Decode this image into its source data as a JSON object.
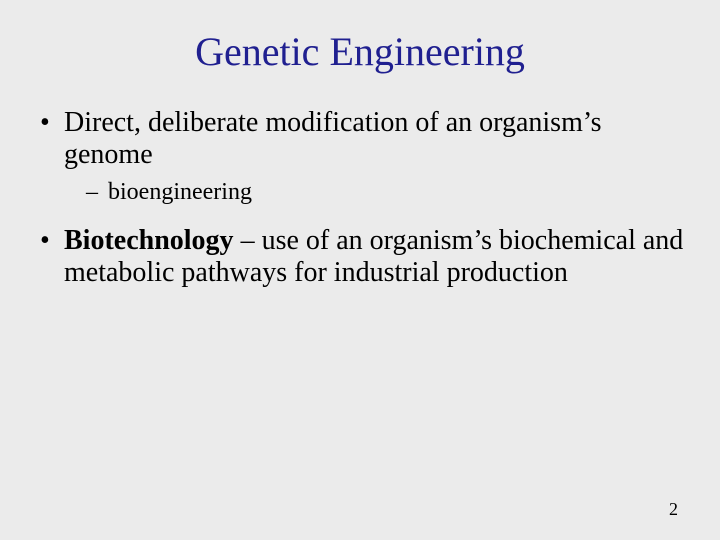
{
  "background_color": "#ebebeb",
  "title": {
    "text": "Genetic Engineering",
    "color": "#202090",
    "fontsize": 40
  },
  "bullets": [
    {
      "level": 1,
      "text": "Direct, deliberate modification of an organism’s genome"
    },
    {
      "level": 2,
      "text": "bioengineering"
    }
  ],
  "bullet2": {
    "bold_term": "Biotechnology",
    "separator": " – ",
    "rest": "use of an organism’s biochemical and metabolic pathways for industrial production"
  },
  "page_number": "2",
  "body_fontsize_l1": 28,
  "body_fontsize_l2": 24
}
